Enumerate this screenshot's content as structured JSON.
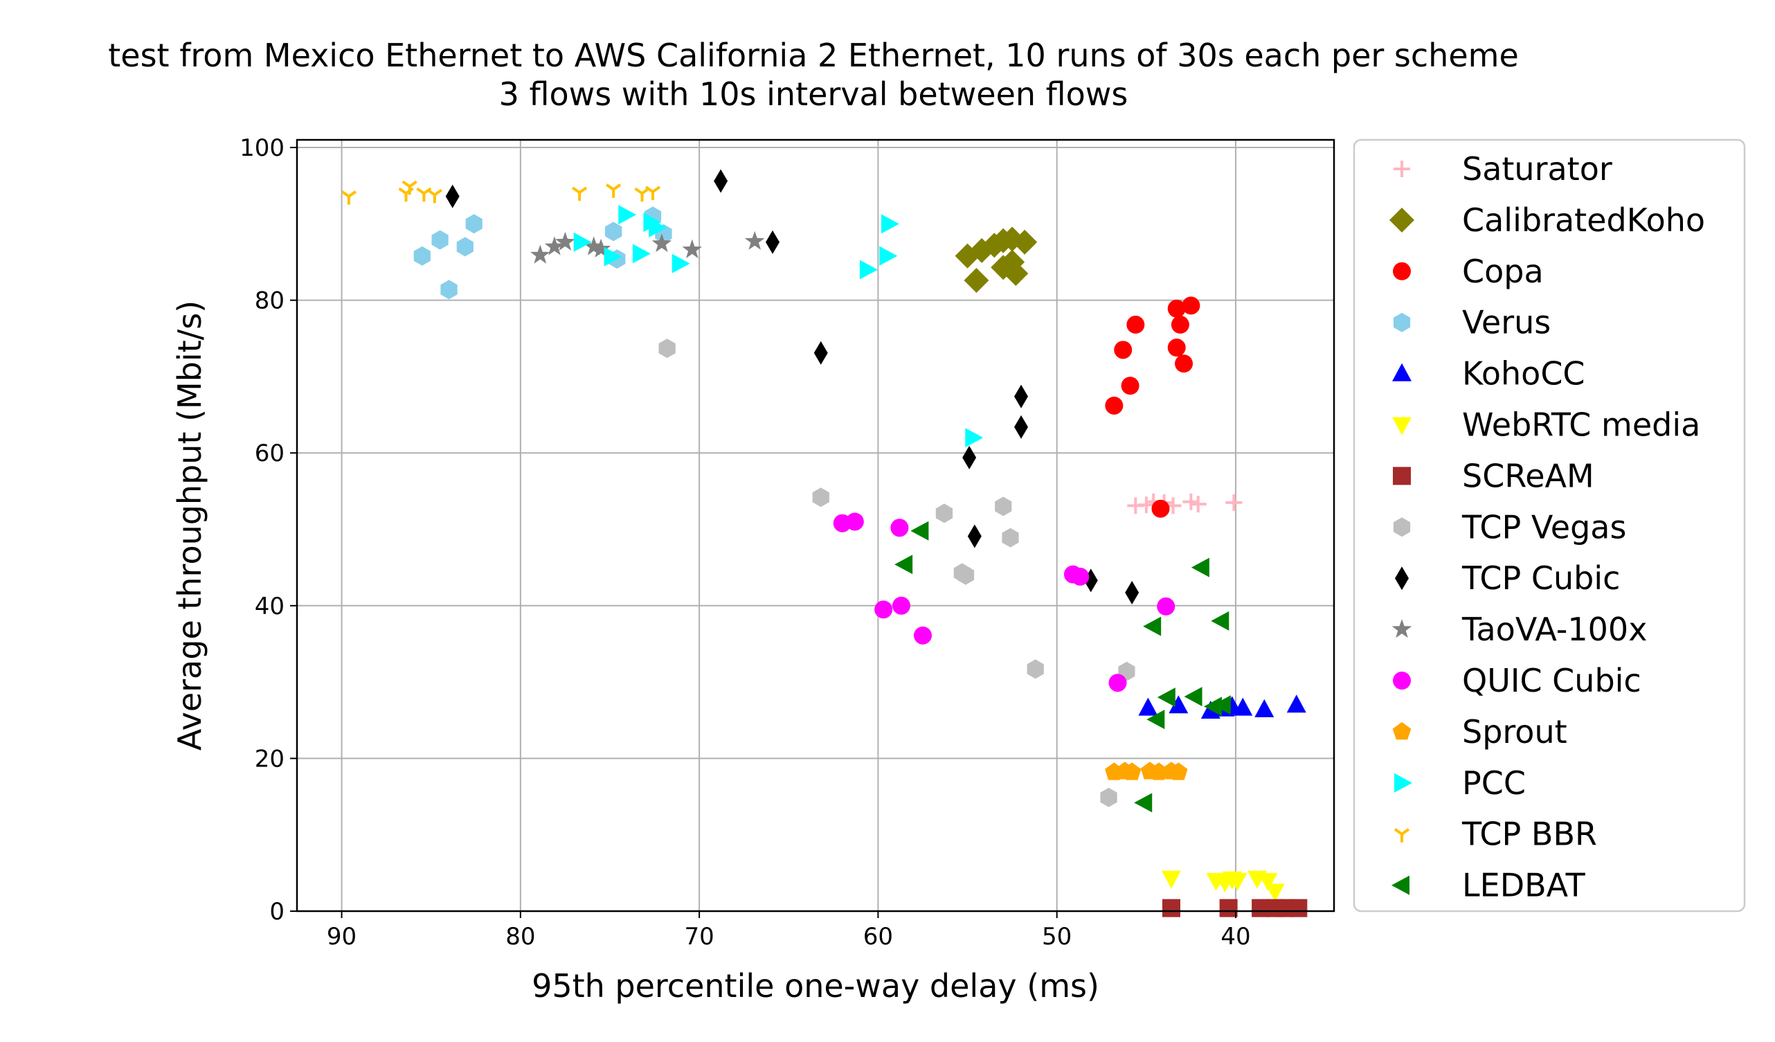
{
  "chart_data": {
    "type": "scatter",
    "title": "test from Mexico Ethernet to AWS California 2 Ethernet, 10 runs of 30s each per scheme",
    "subtitle": "3 flows with 10s interval between flows",
    "xlabel": "95th percentile one-way delay (ms)",
    "ylabel": "Average throughput (Mbit/s)",
    "xlim": [
      92.5,
      34.5
    ],
    "ylim": [
      0,
      101
    ],
    "x_inverted": true,
    "grid": true,
    "legend_position": "outside-right",
    "x_ticks": [
      90,
      80,
      70,
      60,
      50,
      40
    ],
    "y_ticks": [
      0,
      20,
      40,
      60,
      80,
      100
    ],
    "series": [
      {
        "name": "Saturator",
        "color": "#ffb6c1",
        "marker": "plus",
        "points": [
          [
            45.6,
            53.1
          ],
          [
            45.0,
            53.2
          ],
          [
            44.6,
            53.6
          ],
          [
            44.0,
            53.5
          ],
          [
            43.5,
            53.1
          ],
          [
            42.5,
            53.6
          ],
          [
            42.1,
            53.3
          ],
          [
            40.1,
            53.5
          ]
        ]
      },
      {
        "name": "CalibratedKoho",
        "color": "#808000",
        "marker": "diamond",
        "points": [
          [
            55.0,
            85.8
          ],
          [
            54.2,
            86.5
          ],
          [
            53.5,
            87.2
          ],
          [
            53.0,
            87.8
          ],
          [
            52.5,
            88.0
          ],
          [
            51.8,
            87.6
          ],
          [
            54.5,
            82.6
          ],
          [
            53.0,
            84.3
          ],
          [
            52.3,
            83.5
          ],
          [
            52.5,
            85.0
          ]
        ]
      },
      {
        "name": "Copa",
        "color": "#ff0000",
        "marker": "circle",
        "points": [
          [
            43.3,
            78.9
          ],
          [
            42.5,
            79.3
          ],
          [
            45.6,
            76.8
          ],
          [
            46.3,
            73.5
          ],
          [
            43.3,
            73.8
          ],
          [
            42.9,
            71.7
          ],
          [
            45.9,
            68.8
          ],
          [
            46.8,
            66.2
          ],
          [
            43.1,
            76.8
          ],
          [
            44.2,
            52.7
          ]
        ]
      },
      {
        "name": "Verus",
        "color": "#87ceeb",
        "marker": "hexagon",
        "points": [
          [
            85.5,
            85.8
          ],
          [
            84.5,
            87.9
          ],
          [
            83.1,
            87.0
          ],
          [
            82.6,
            90.0
          ],
          [
            84.0,
            81.4
          ],
          [
            74.8,
            89.0
          ],
          [
            74.6,
            85.4
          ],
          [
            72.6,
            91.0
          ],
          [
            72.0,
            88.7
          ]
        ]
      },
      {
        "name": "KohoCC",
        "color": "#0000ff",
        "marker": "triangle-up",
        "points": [
          [
            44.9,
            26.6
          ],
          [
            43.2,
            26.9
          ],
          [
            41.4,
            26.2
          ],
          [
            40.6,
            26.5
          ],
          [
            40.2,
            26.8
          ],
          [
            39.6,
            26.6
          ],
          [
            38.4,
            26.4
          ],
          [
            36.6,
            27.0
          ]
        ]
      },
      {
        "name": "WebRTC media",
        "color": "#ffff00",
        "marker": "triangle-down",
        "points": [
          [
            43.6,
            4.3
          ],
          [
            41.1,
            4.0
          ],
          [
            40.6,
            3.8
          ],
          [
            40.2,
            4.2
          ],
          [
            39.9,
            4.0
          ],
          [
            38.8,
            4.3
          ],
          [
            38.2,
            4.0
          ],
          [
            37.8,
            2.6
          ]
        ]
      },
      {
        "name": "SCReAM",
        "color": "#a52a2a",
        "marker": "square",
        "points": [
          [
            43.6,
            0.4
          ],
          [
            40.4,
            0.4
          ],
          [
            38.6,
            0.4
          ],
          [
            37.8,
            0.4
          ],
          [
            37.2,
            0.4
          ],
          [
            36.5,
            0.4
          ]
        ]
      },
      {
        "name": "TCP Vegas",
        "color": "#bebebe",
        "marker": "hexagon",
        "points": [
          [
            71.8,
            73.7
          ],
          [
            63.2,
            54.2
          ],
          [
            56.3,
            52.1
          ],
          [
            55.3,
            44.3
          ],
          [
            55.1,
            44.0
          ],
          [
            53.0,
            53.0
          ],
          [
            52.6,
            48.9
          ],
          [
            51.2,
            31.7
          ],
          [
            47.1,
            14.9
          ],
          [
            46.1,
            31.4
          ]
        ]
      },
      {
        "name": "TCP Cubic",
        "color": "#000000",
        "marker": "thin-diamond",
        "points": [
          [
            83.8,
            93.6
          ],
          [
            68.8,
            95.6
          ],
          [
            65.9,
            87.6
          ],
          [
            63.2,
            73.1
          ],
          [
            54.9,
            59.4
          ],
          [
            54.6,
            49.1
          ],
          [
            52.0,
            67.4
          ],
          [
            52.0,
            63.4
          ],
          [
            48.1,
            43.3
          ],
          [
            45.8,
            41.7
          ]
        ]
      },
      {
        "name": "TaoVA-100x",
        "color": "#808080",
        "marker": "star",
        "points": [
          [
            78.9,
            85.9
          ],
          [
            78.1,
            87.0
          ],
          [
            77.5,
            87.6
          ],
          [
            75.9,
            87.0
          ],
          [
            75.5,
            86.7
          ],
          [
            72.1,
            87.4
          ],
          [
            70.4,
            86.6
          ],
          [
            66.9,
            87.7
          ]
        ]
      },
      {
        "name": "QUIC Cubic",
        "color": "#ff00ff",
        "marker": "circle",
        "points": [
          [
            62.0,
            50.8
          ],
          [
            61.3,
            51.0
          ],
          [
            58.8,
            50.2
          ],
          [
            59.7,
            39.5
          ],
          [
            58.7,
            40.0
          ],
          [
            57.5,
            36.1
          ],
          [
            49.1,
            44.1
          ],
          [
            48.7,
            43.8
          ],
          [
            46.6,
            29.9
          ],
          [
            43.9,
            39.9
          ]
        ]
      },
      {
        "name": "Sprout",
        "color": "#ffa500",
        "marker": "pentagon",
        "points": [
          [
            46.8,
            18.2
          ],
          [
            46.2,
            18.3
          ],
          [
            45.8,
            18.2
          ],
          [
            44.8,
            18.3
          ],
          [
            44.3,
            18.2
          ],
          [
            43.6,
            18.3
          ],
          [
            43.2,
            18.2
          ]
        ]
      },
      {
        "name": "PCC",
        "color": "#00ffff",
        "marker": "triangle-right",
        "points": [
          [
            76.6,
            87.6
          ],
          [
            74.1,
            91.2
          ],
          [
            74.9,
            85.7
          ],
          [
            72.7,
            90.2
          ],
          [
            72.4,
            89.5
          ],
          [
            73.3,
            86.1
          ],
          [
            71.1,
            84.8
          ],
          [
            60.6,
            84.0
          ],
          [
            59.5,
            85.8
          ],
          [
            59.4,
            90.0
          ],
          [
            54.7,
            62.0
          ]
        ]
      },
      {
        "name": "TCP BBR",
        "color": "#ffc000",
        "marker": "tri-down",
        "points": [
          [
            89.6,
            93.6
          ],
          [
            86.4,
            94.0
          ],
          [
            86.2,
            94.9
          ],
          [
            85.4,
            94.0
          ],
          [
            84.8,
            93.8
          ],
          [
            76.7,
            94.1
          ],
          [
            74.8,
            94.5
          ],
          [
            73.2,
            94.0
          ],
          [
            72.6,
            94.2
          ]
        ]
      },
      {
        "name": "LEDBAT",
        "color": "#008000",
        "marker": "triangle-left",
        "points": [
          [
            57.6,
            49.8
          ],
          [
            58.5,
            45.4
          ],
          [
            41.9,
            45.0
          ],
          [
            44.6,
            37.3
          ],
          [
            40.8,
            38.0
          ],
          [
            44.4,
            25.1
          ],
          [
            43.8,
            28.0
          ],
          [
            42.3,
            28.1
          ],
          [
            41.2,
            26.8
          ],
          [
            40.7,
            27.0
          ],
          [
            45.1,
            14.2
          ]
        ]
      }
    ]
  }
}
